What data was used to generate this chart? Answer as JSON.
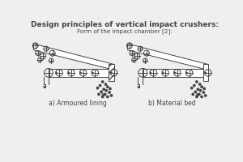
{
  "title": "Design principles of vertical impact crushers:",
  "subtitle": "Form of the impact chamber [2]:",
  "label_a": "a) Armoured lining",
  "label_b": "b) Material bed",
  "bg_color": "#efefef",
  "line_color": "#444444",
  "title_fontsize": 6.5,
  "subtitle_fontsize": 5.2,
  "label_fontsize": 5.5
}
